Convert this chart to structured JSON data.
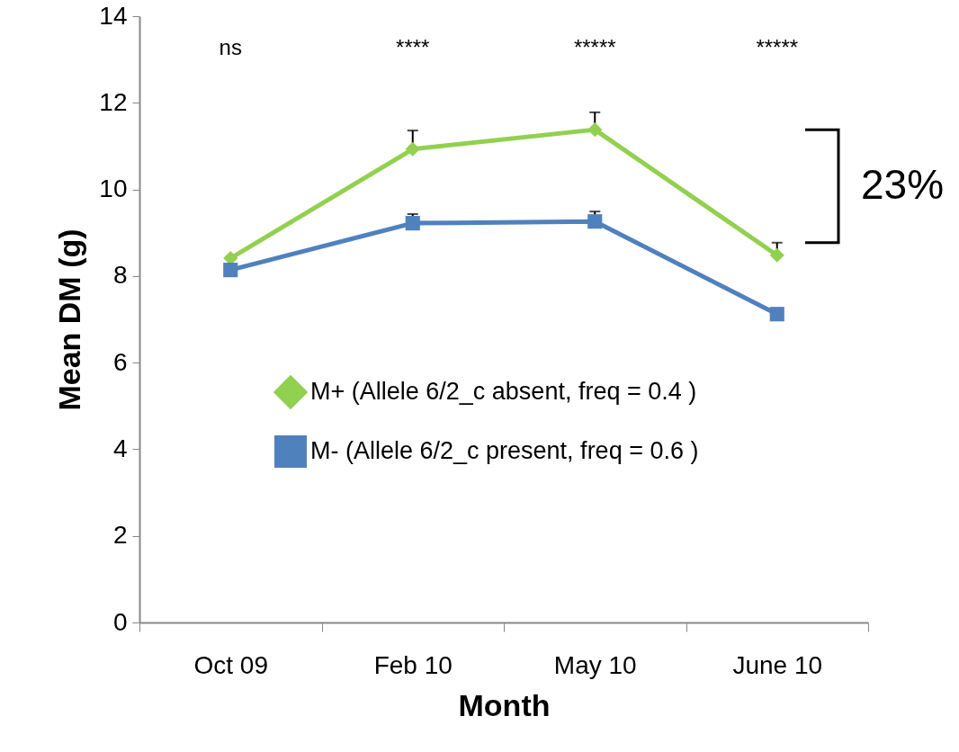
{
  "chart_data": {
    "type": "line",
    "xlabel": "Month",
    "ylabel": "Mean DM (g)",
    "categories": [
      "Oct 09",
      "Feb 10",
      "May 10",
      "June 10"
    ],
    "series": [
      {
        "name": "M+ (Allele 6/2_c   absent, freq = 0.4 )",
        "color": "#92d050",
        "marker": "diamond",
        "values": [
          8.41,
          10.93,
          11.38,
          8.48
        ],
        "errors": [
          null,
          [
            10.93,
            11.36
          ],
          [
            11.38,
            11.78
          ],
          [
            8.48,
            8.77
          ]
        ]
      },
      {
        "name": "M- (Allele 6/2_c  present, freq = 0.6 )",
        "color": "#4f81bd",
        "marker": "square",
        "values": [
          8.14,
          9.22,
          9.26,
          7.12
        ],
        "errors": [
          null,
          [
            9.22,
            9.43
          ],
          [
            9.26,
            9.49
          ],
          null
        ]
      }
    ],
    "ylim": [
      0,
      14
    ],
    "yticks": [
      0,
      2,
      4,
      6,
      8,
      10,
      12,
      14
    ],
    "grid": false,
    "legend": "right",
    "annotations": [
      "ns",
      "****",
      "*****",
      "*****",
      "23%"
    ]
  }
}
